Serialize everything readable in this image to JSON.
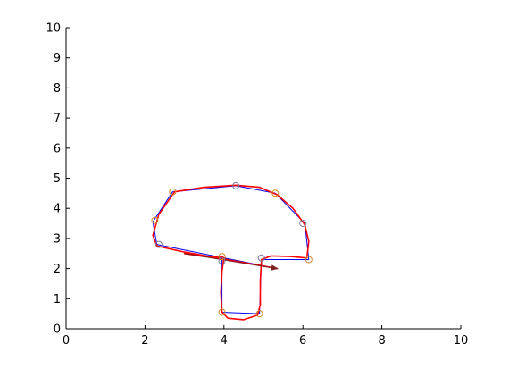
{
  "chart_data": {
    "type": "line",
    "title": "",
    "xlabel": "",
    "ylabel": "",
    "xlim": [
      0,
      10
    ],
    "ylim": [
      0,
      10
    ],
    "grid": false,
    "legend": "none",
    "x_ticks": [
      0,
      2,
      4,
      6,
      8,
      10
    ],
    "y_ticks": [
      0,
      1,
      2,
      3,
      4,
      5,
      6,
      7,
      8,
      9,
      10
    ],
    "series": [
      {
        "color": "#0000ff",
        "line_style": "solid",
        "markers": "none",
        "x": [
          5.35,
          2.3,
          2.2,
          2.7,
          4.3,
          5.3,
          6.05,
          6.15,
          4.95,
          4.9,
          3.95,
          3.95
        ],
        "y": [
          2.0,
          2.8,
          3.55,
          4.55,
          4.75,
          4.5,
          3.5,
          2.3,
          2.3,
          0.5,
          0.55,
          2.3
        ]
      },
      {
        "color": "#ff0000",
        "line_style": "solid",
        "markers": "none",
        "x": [
          5.35,
          3.0,
          2.3,
          2.2,
          2.35,
          2.75,
          3.5,
          4.3,
          4.9,
          5.35,
          5.75,
          6.05,
          6.15,
          6.1,
          5.7,
          5.2,
          4.95,
          4.92,
          4.92,
          4.85,
          4.5,
          4.1,
          3.95,
          3.92,
          3.95,
          4.0,
          3.95,
          3.5,
          3.0
        ],
        "y": [
          2.0,
          2.55,
          2.75,
          3.1,
          3.8,
          4.55,
          4.7,
          4.77,
          4.7,
          4.45,
          4.0,
          3.45,
          2.9,
          2.35,
          2.4,
          2.42,
          2.3,
          1.6,
          0.8,
          0.45,
          0.3,
          0.35,
          0.55,
          1.2,
          1.9,
          2.35,
          2.4,
          2.4,
          2.5
        ]
      },
      {
        "color": "#7a1e1e",
        "line_style": "solid",
        "markers": "arrow-end",
        "x": [
          3.0,
          5.35
        ],
        "y": [
          2.5,
          2.0
        ]
      },
      {
        "color": "#d08a2a",
        "line_style": "none",
        "markers": "circle",
        "x": [
          2.7,
          2.25,
          3.95,
          3.95,
          4.9,
          6.15,
          5.3
        ],
        "y": [
          4.55,
          3.6,
          2.4,
          0.55,
          0.5,
          2.3,
          4.5
        ]
      },
      {
        "color": "#7a7a9a",
        "line_style": "none",
        "markers": "circle",
        "x": [
          4.3,
          6.0,
          4.95,
          3.95,
          2.35
        ],
        "y": [
          4.75,
          3.5,
          2.35,
          2.25,
          2.8
        ]
      }
    ]
  }
}
